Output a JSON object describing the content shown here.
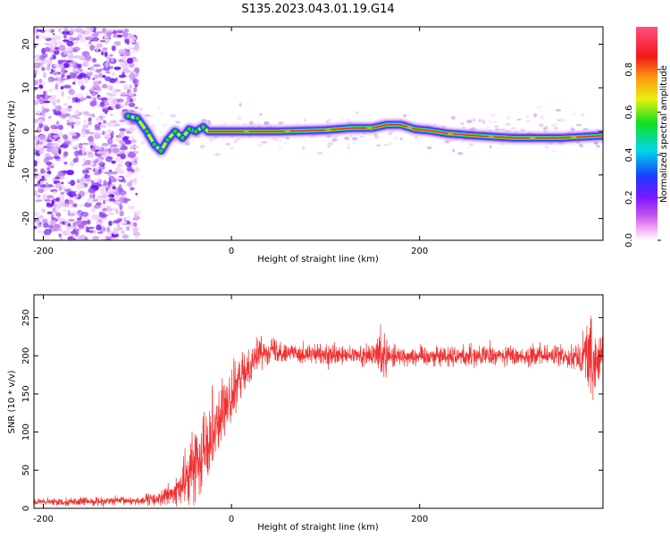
{
  "title": "S135.2023.043.01.19.G14",
  "colors": {
    "snr_line": "#f03232",
    "spec_noise": "#7b2bff",
    "spec_track_core": "#e8201a",
    "spec_track_halo": "#1a3cff",
    "axis": "#000000"
  },
  "chart_data": [
    {
      "type": "heatmap",
      "name": "spectrogram",
      "xlabel": "Height of straight line (km)",
      "ylabel": "Frequency (Hz)",
      "xlim": [
        -210,
        395
      ],
      "ylim": [
        -25,
        24
      ],
      "x_ticks": [
        -200,
        0,
        200
      ],
      "y_ticks": [
        -20,
        -10,
        0,
        10,
        20
      ],
      "colorbar": {
        "label": "Normalized spectral amplitude",
        "range": [
          0,
          1
        ],
        "ticks": [
          "0.0",
          "0.2",
          "0.4",
          "0.6",
          "0.8"
        ],
        "colormap": "rainbow (white→magenta→purple→blue→cyan→green→yellow→orange→red→pink)"
      },
      "noise_region_x": [
        -210,
        -100
      ],
      "track_freq_hz": [
        [
          -110,
          3.5
        ],
        [
          -100,
          3
        ],
        [
          -90,
          0
        ],
        [
          -82,
          -3
        ],
        [
          -75,
          -4.5
        ],
        [
          -68,
          -2
        ],
        [
          -60,
          0
        ],
        [
          -52,
          -1.5
        ],
        [
          -45,
          0.5
        ],
        [
          -38,
          0
        ],
        [
          -30,
          1
        ],
        [
          -25,
          0
        ],
        [
          0,
          0
        ],
        [
          50,
          0
        ],
        [
          100,
          0.3
        ],
        [
          130,
          0.8
        ],
        [
          150,
          0.8
        ],
        [
          165,
          1.5
        ],
        [
          180,
          1.5
        ],
        [
          195,
          0.5
        ],
        [
          210,
          0.2
        ],
        [
          230,
          -0.5
        ],
        [
          260,
          -1
        ],
        [
          300,
          -1.5
        ],
        [
          350,
          -1.5
        ],
        [
          395,
          -1
        ]
      ]
    },
    {
      "type": "line",
      "name": "snr",
      "xlabel": "Height of straight line (km)",
      "ylabel": "SNR (10 * v/v)",
      "xlim": [
        -210,
        395
      ],
      "ylim": [
        0,
        280
      ],
      "x_ticks": [
        -200,
        0,
        200
      ],
      "y_ticks": [
        0,
        50,
        100,
        150,
        200,
        250
      ],
      "envelope": {
        "x": [
          -210,
          -150,
          -100,
          -80,
          -60,
          -50,
          -40,
          -30,
          -20,
          -10,
          0,
          10,
          20,
          30,
          40,
          60,
          100,
          150,
          160,
          170,
          200,
          250,
          300,
          350,
          370,
          380,
          385,
          390,
          395
        ],
        "mean": [
          8,
          9,
          10,
          12,
          20,
          35,
          55,
          80,
          105,
          125,
          145,
          170,
          190,
          205,
          208,
          205,
          200,
          200,
          205,
          200,
          200,
          200,
          200,
          200,
          200,
          205,
          180,
          200,
          200
        ],
        "spread": [
          4,
          5,
          5,
          8,
          15,
          25,
          40,
          45,
          45,
          40,
          30,
          25,
          20,
          15,
          15,
          12,
          12,
          12,
          35,
          12,
          12,
          12,
          12,
          12,
          15,
          45,
          55,
          30,
          20
        ]
      }
    }
  ]
}
